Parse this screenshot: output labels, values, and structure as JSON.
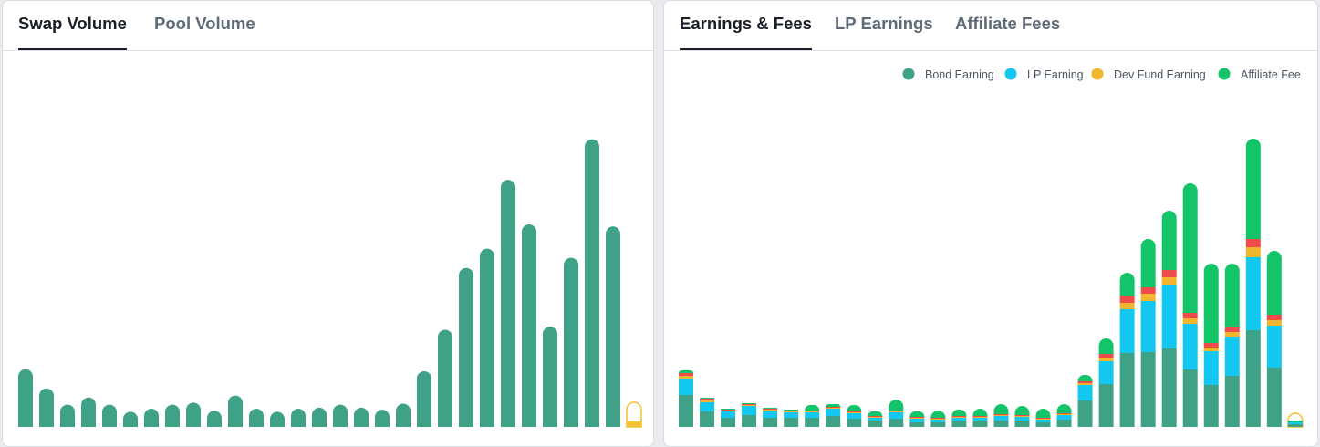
{
  "left_panel": {
    "tabs": [
      {
        "label": "Swap Volume",
        "active": true
      },
      {
        "label": "Pool Volume",
        "active": false
      }
    ]
  },
  "right_panel": {
    "tabs": [
      {
        "label": "Earnings & Fees",
        "active": true
      },
      {
        "label": "LP Earnings",
        "active": false
      },
      {
        "label": "Affiliate Fees",
        "active": false
      }
    ],
    "legend": [
      {
        "label": "Bond Earning",
        "color": "#3fa287"
      },
      {
        "label": "LP Earning",
        "color": "#13c7f0"
      },
      {
        "label": "Dev Fund Earning",
        "color": "#f2b62e"
      },
      {
        "label": "Affiliate Fee",
        "color": "#14c468"
      }
    ]
  },
  "chart_data": [
    {
      "type": "bar",
      "colors": {
        "bar": "#3fa287",
        "partial": "#f2c230"
      },
      "values": [
        57,
        38,
        22,
        29,
        22,
        15,
        18,
        22,
        24,
        16,
        31,
        18,
        15,
        18,
        19,
        22,
        19,
        17,
        23,
        55,
        96,
        157,
        176,
        244,
        200,
        99,
        167,
        284,
        198,
        4
      ],
      "partial_last": true,
      "ylim": [
        0,
        300
      ]
    },
    {
      "type": "bar",
      "stacked": true,
      "colors": [
        "#3fa287",
        "#13c7f0",
        "#f2b62e",
        "#ee4c4c",
        "#14c468"
      ],
      "series": [
        {
          "name": "Bond Earning",
          "values": [
            35,
            17,
            10,
            13,
            10,
            10,
            10,
            12,
            9,
            6,
            9,
            5,
            5,
            6,
            6,
            7,
            7,
            5,
            8,
            29,
            47,
            81,
            82,
            86,
            63,
            46,
            56,
            106,
            65,
            3
          ]
        },
        {
          "name": "LP Earning",
          "values": [
            18,
            10,
            7,
            10,
            8,
            6,
            6,
            8,
            6,
            4,
            7,
            4,
            3,
            4,
            4,
            5,
            4,
            3,
            5,
            17,
            25,
            48,
            56,
            70,
            50,
            37,
            43,
            80,
            46,
            2
          ]
        },
        {
          "name": "Dev Fund Earning",
          "values": [
            3,
            2,
            1,
            1,
            1,
            1,
            1,
            1,
            1,
            1,
            1,
            1,
            1,
            1,
            1,
            1,
            1,
            1,
            1,
            2,
            4,
            7,
            8,
            8,
            6,
            4,
            5,
            11,
            6,
            0
          ]
        },
        {
          "name": "",
          "values": [
            3,
            2,
            1,
            1,
            1,
            1,
            1,
            1,
            1,
            1,
            1,
            1,
            1,
            1,
            1,
            1,
            1,
            1,
            1,
            2,
            4,
            8,
            7,
            8,
            6,
            5,
            5,
            9,
            6,
            0
          ]
        },
        {
          "name": "Affiliate Fee",
          "values": [
            3,
            1,
            1,
            1,
            1,
            1,
            6,
            3,
            7,
            5,
            12,
            6,
            8,
            7,
            8,
            11,
            10,
            10,
            10,
            7,
            17,
            25,
            53,
            65,
            142,
            87,
            70,
            110,
            70,
            2
          ]
        }
      ],
      "partial_last": true,
      "ylim": [
        0,
        330
      ]
    }
  ]
}
